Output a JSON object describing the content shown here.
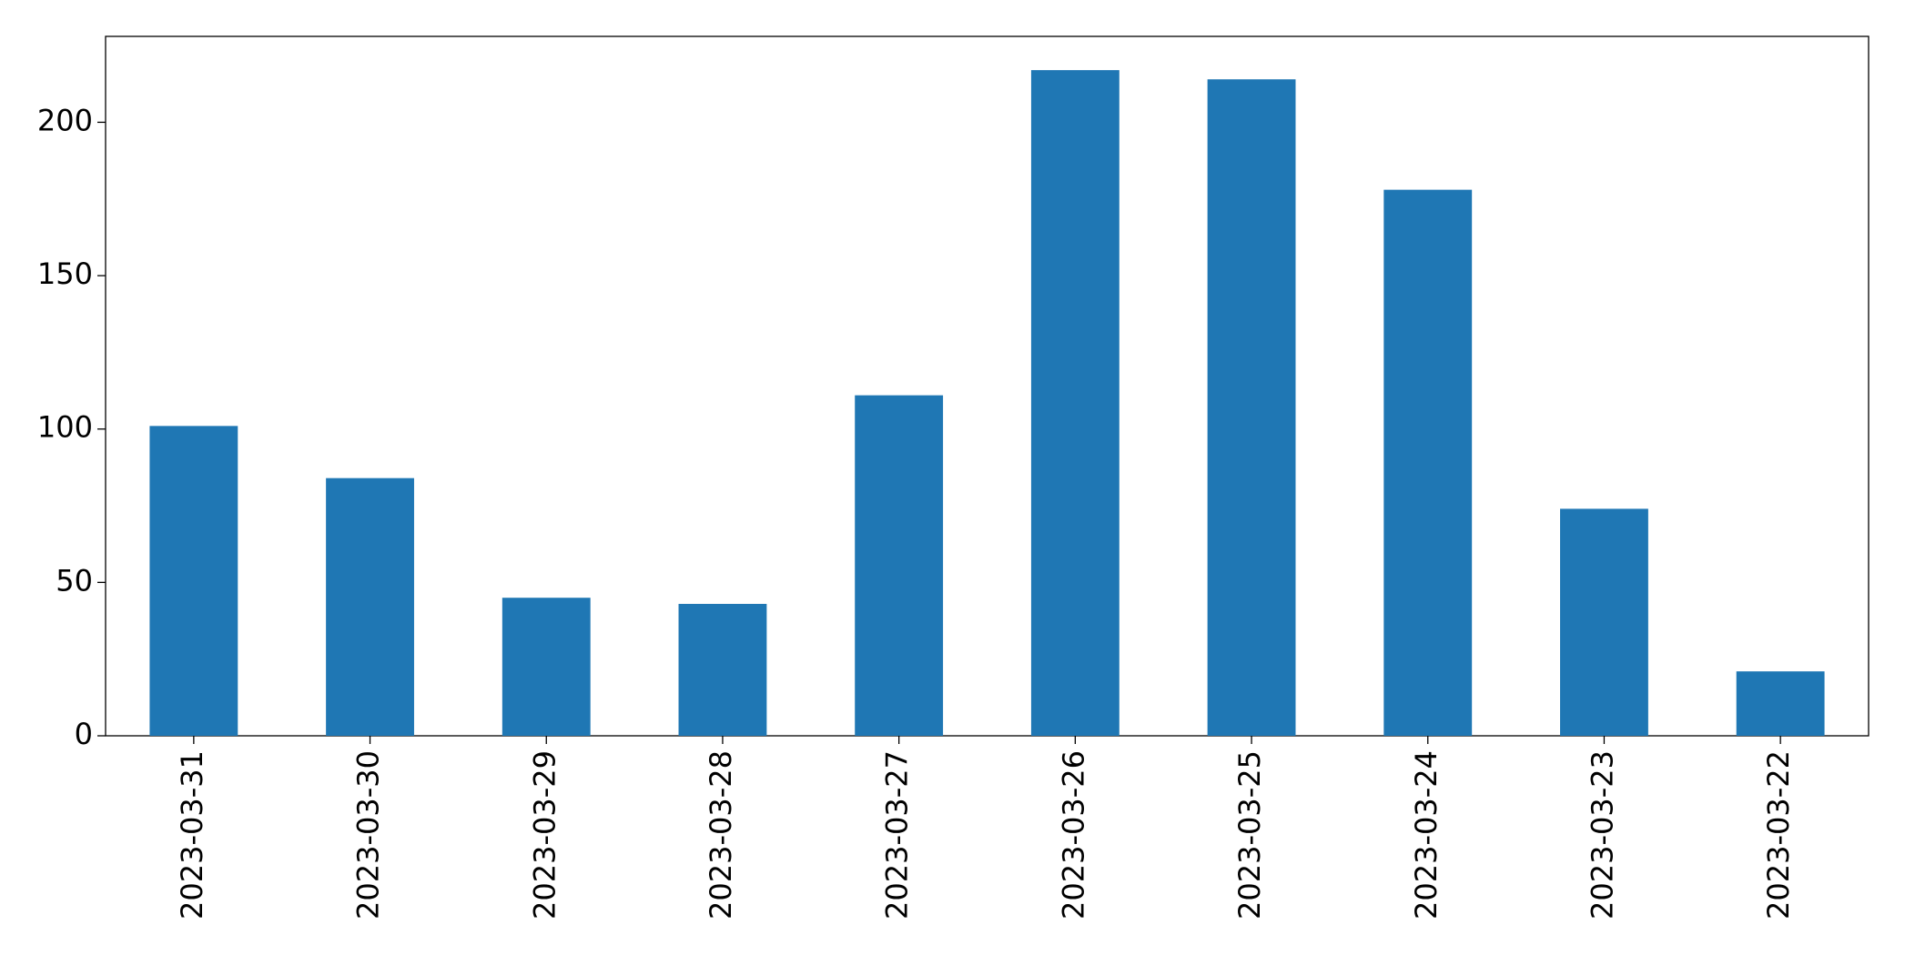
{
  "chart_data": {
    "type": "bar",
    "categories": [
      "2023-03-31",
      "2023-03-30",
      "2023-03-29",
      "2023-03-28",
      "2023-03-27",
      "2023-03-26",
      "2023-03-25",
      "2023-03-24",
      "2023-03-23",
      "2023-03-22"
    ],
    "values": [
      101,
      84,
      45,
      43,
      111,
      217,
      214,
      178,
      74,
      21
    ],
    "color": "#1f77b4",
    "ylim": [
      0,
      228
    ],
    "yticks": [
      0,
      50,
      100,
      150,
      200
    ],
    "grid": false
  }
}
